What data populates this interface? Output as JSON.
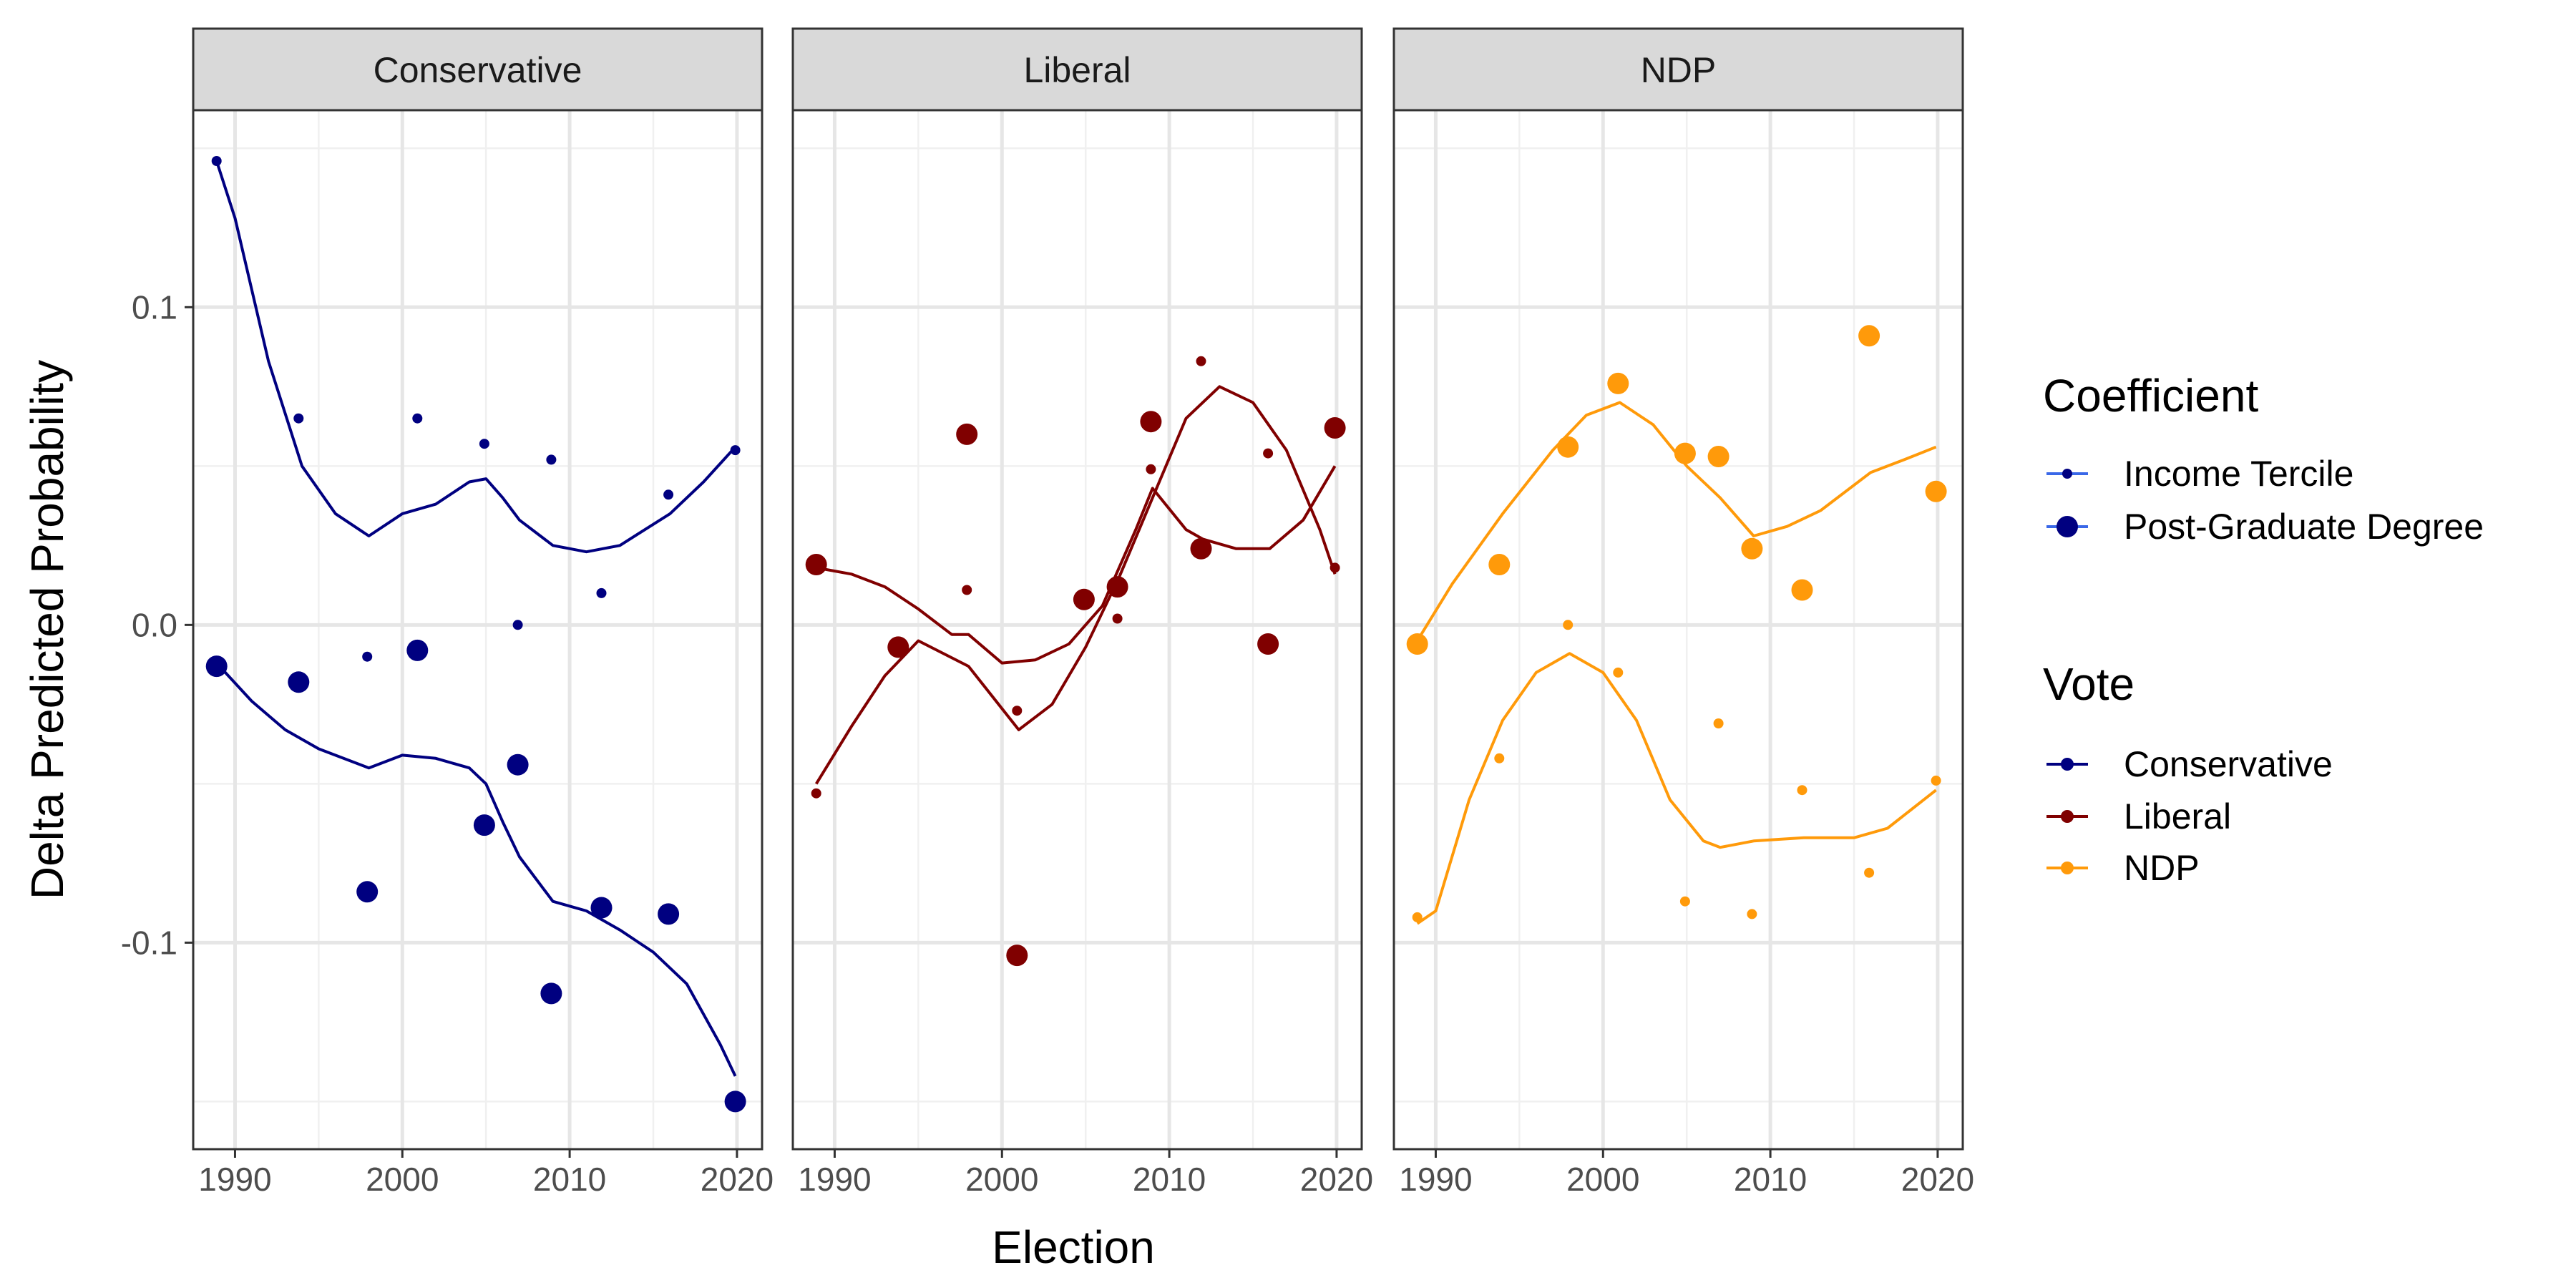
{
  "chart_data": {
    "type": "scatter",
    "xlabel": "Election",
    "ylabel": "Delta Predicted Probability",
    "xlim": [
      1987.5,
      2021.5
    ],
    "ylim": [
      -0.165,
      0.162
    ],
    "x_ticks": [
      1990,
      2000,
      2010,
      2020
    ],
    "x_tick_labels": [
      "1990",
      "2000",
      "2010",
      "2020"
    ],
    "y_ticks": [
      0.1,
      0.0,
      -0.1
    ],
    "y_tick_labels": [
      "0.1",
      "0.0",
      "-0.1"
    ],
    "y_minor_ticks": [
      0.15,
      0.05,
      -0.05,
      -0.15
    ],
    "grid": true,
    "legend_position": "right",
    "panels": [
      "Conservative",
      "Liberal",
      "NDP"
    ],
    "colors": {
      "Conservative": "#000080",
      "Liberal": "#800000",
      "NDP": "#FF9A0A",
      "legend_line": "#3A68E8"
    },
    "legend": {
      "coefficient_title": "Coefficient",
      "coefficient_items": [
        "Income Tercile",
        "Post-Graduate Degree"
      ],
      "vote_title": "Vote",
      "vote_items": [
        "Conservative",
        "Liberal",
        "NDP"
      ]
    },
    "series": [
      {
        "panel": "Conservative",
        "vote": "Conservative",
        "coefficient": "Income Tercile",
        "points": [
          [
            1988.9,
            0.146
          ],
          [
            1993.8,
            0.065
          ],
          [
            1997.9,
            -0.01
          ],
          [
            2000.9,
            0.065
          ],
          [
            2004.9,
            0.057
          ],
          [
            2006.9,
            0.0
          ],
          [
            2008.9,
            0.052
          ],
          [
            2011.9,
            0.01
          ],
          [
            2015.9,
            0.041
          ],
          [
            2019.9,
            0.055
          ]
        ],
        "smooth": [
          [
            1988.9,
            0.146
          ],
          [
            1990,
            0.128
          ],
          [
            1992,
            0.083
          ],
          [
            1994,
            0.05
          ],
          [
            1996,
            0.035
          ],
          [
            1998,
            0.028
          ],
          [
            2000,
            0.035
          ],
          [
            2002,
            0.038
          ],
          [
            2004,
            0.045
          ],
          [
            2005,
            0.046
          ],
          [
            2006,
            0.04
          ],
          [
            2007,
            0.033
          ],
          [
            2009,
            0.025
          ],
          [
            2011,
            0.023
          ],
          [
            2013,
            0.025
          ],
          [
            2016,
            0.035
          ],
          [
            2018,
            0.045
          ],
          [
            2019.9,
            0.056
          ]
        ]
      },
      {
        "panel": "Conservative",
        "vote": "Conservative",
        "coefficient": "Post-Graduate Degree",
        "points": [
          [
            1988.9,
            -0.013
          ],
          [
            1993.8,
            -0.018
          ],
          [
            1997.9,
            -0.084
          ],
          [
            2000.9,
            -0.008
          ],
          [
            2004.9,
            -0.063
          ],
          [
            2006.9,
            -0.044
          ],
          [
            2008.9,
            -0.116
          ],
          [
            2011.9,
            -0.089
          ],
          [
            2015.9,
            -0.091
          ],
          [
            2019.9,
            -0.15
          ]
        ],
        "smooth": [
          [
            1988.9,
            -0.012
          ],
          [
            1991,
            -0.024
          ],
          [
            1993,
            -0.033
          ],
          [
            1995,
            -0.039
          ],
          [
            1998,
            -0.045
          ],
          [
            2000,
            -0.041
          ],
          [
            2002,
            -0.042
          ],
          [
            2004,
            -0.045
          ],
          [
            2005,
            -0.05
          ],
          [
            2006,
            -0.062
          ],
          [
            2007,
            -0.073
          ],
          [
            2009,
            -0.087
          ],
          [
            2011,
            -0.09
          ],
          [
            2013,
            -0.096
          ],
          [
            2015,
            -0.103
          ],
          [
            2017,
            -0.113
          ],
          [
            2019,
            -0.132
          ],
          [
            2019.9,
            -0.142
          ]
        ]
      },
      {
        "panel": "Liberal",
        "vote": "Liberal",
        "coefficient": "Income Tercile",
        "points": [
          [
            1988.9,
            -0.053
          ],
          [
            1993.8,
            -0.006
          ],
          [
            1997.9,
            0.011
          ],
          [
            2000.9,
            -0.027
          ],
          [
            2004.9,
            0.008
          ],
          [
            2006.9,
            0.002
          ],
          [
            2008.9,
            0.049
          ],
          [
            2011.9,
            0.083
          ],
          [
            2015.9,
            0.054
          ],
          [
            2019.9,
            0.018
          ]
        ],
        "smooth": [
          [
            1988.9,
            -0.05
          ],
          [
            1991,
            -0.032
          ],
          [
            1993,
            -0.016
          ],
          [
            1995,
            -0.005
          ],
          [
            1998,
            -0.013
          ],
          [
            2001,
            -0.033
          ],
          [
            2003,
            -0.025
          ],
          [
            2005,
            -0.007
          ],
          [
            2007,
            0.015
          ],
          [
            2009,
            0.04
          ],
          [
            2011,
            0.065
          ],
          [
            2013,
            0.075
          ],
          [
            2015,
            0.07
          ],
          [
            2017,
            0.055
          ],
          [
            2019,
            0.03
          ],
          [
            2019.9,
            0.016
          ]
        ]
      },
      {
        "panel": "Liberal",
        "vote": "Liberal",
        "coefficient": "Post-Graduate Degree",
        "points": [
          [
            1988.9,
            0.019
          ],
          [
            1993.8,
            -0.007
          ],
          [
            1997.9,
            0.06
          ],
          [
            2000.9,
            -0.104
          ],
          [
            2004.9,
            0.008
          ],
          [
            2006.9,
            0.012
          ],
          [
            2008.9,
            0.064
          ],
          [
            2011.9,
            0.024
          ],
          [
            2015.9,
            -0.006
          ],
          [
            2019.9,
            0.062
          ]
        ],
        "smooth": [
          [
            1988.9,
            0.018
          ],
          [
            1991,
            0.016
          ],
          [
            1993,
            0.012
          ],
          [
            1995,
            0.005
          ],
          [
            1997,
            -0.003
          ],
          [
            1998,
            -0.003
          ],
          [
            2000,
            -0.012
          ],
          [
            2002,
            -0.011
          ],
          [
            2004,
            -0.006
          ],
          [
            2006,
            0.006
          ],
          [
            2008,
            0.03
          ],
          [
            2009,
            0.043
          ],
          [
            2011,
            0.03
          ],
          [
            2012,
            0.027
          ],
          [
            2014,
            0.024
          ],
          [
            2016,
            0.024
          ],
          [
            2018,
            0.033
          ],
          [
            2019.9,
            0.05
          ]
        ]
      },
      {
        "panel": "NDP",
        "vote": "NDP",
        "coefficient": "Income Tercile",
        "points": [
          [
            1988.9,
            -0.092
          ],
          [
            1993.8,
            -0.042
          ],
          [
            1997.9,
            0.0
          ],
          [
            2000.9,
            -0.015
          ],
          [
            2004.9,
            -0.087
          ],
          [
            2006.9,
            -0.031
          ],
          [
            2008.9,
            -0.091
          ],
          [
            2011.9,
            -0.052
          ],
          [
            2015.9,
            -0.078
          ],
          [
            2019.9,
            -0.049
          ]
        ],
        "smooth": [
          [
            1988.9,
            -0.094
          ],
          [
            1990,
            -0.09
          ],
          [
            1992,
            -0.055
          ],
          [
            1994,
            -0.03
          ],
          [
            1996,
            -0.015
          ],
          [
            1998,
            -0.009
          ],
          [
            2000,
            -0.015
          ],
          [
            2002,
            -0.03
          ],
          [
            2004,
            -0.055
          ],
          [
            2006,
            -0.068
          ],
          [
            2007,
            -0.07
          ],
          [
            2009,
            -0.068
          ],
          [
            2012,
            -0.067
          ],
          [
            2015,
            -0.067
          ],
          [
            2017,
            -0.064
          ],
          [
            2019.9,
            -0.052
          ]
        ]
      },
      {
        "panel": "NDP",
        "vote": "NDP",
        "coefficient": "Post-Graduate Degree",
        "points": [
          [
            1988.9,
            -0.006
          ],
          [
            1993.8,
            0.019
          ],
          [
            1997.9,
            0.056
          ],
          [
            2000.9,
            0.076
          ],
          [
            2004.9,
            0.054
          ],
          [
            2006.9,
            0.053
          ],
          [
            2008.9,
            0.024
          ],
          [
            2011.9,
            0.011
          ],
          [
            2015.9,
            0.091
          ],
          [
            2019.9,
            0.042
          ]
        ],
        "smooth": [
          [
            1988.9,
            -0.005
          ],
          [
            1991,
            0.013
          ],
          [
            1994,
            0.035
          ],
          [
            1997,
            0.055
          ],
          [
            1999,
            0.066
          ],
          [
            2001,
            0.07
          ],
          [
            2003,
            0.063
          ],
          [
            2005,
            0.05
          ],
          [
            2007,
            0.04
          ],
          [
            2009,
            0.028
          ],
          [
            2011,
            0.031
          ],
          [
            2013,
            0.036
          ],
          [
            2016,
            0.048
          ],
          [
            2018,
            0.052
          ],
          [
            2019.9,
            0.056
          ]
        ]
      }
    ]
  }
}
